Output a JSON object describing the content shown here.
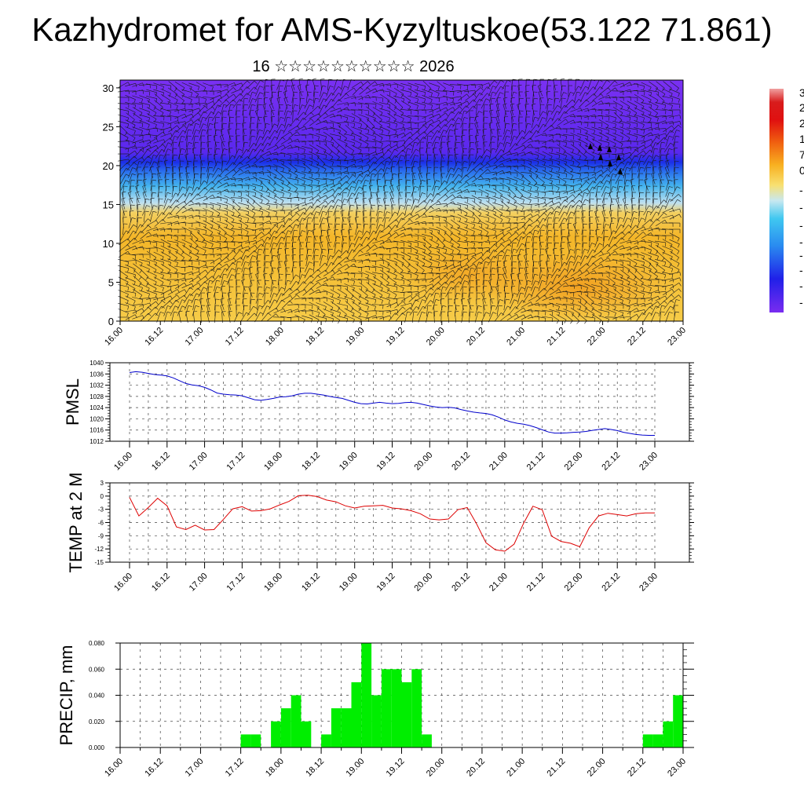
{
  "header": {
    "title": "Kazhydromet for AMS-Kyzyltuskoe(53.122 71.861)",
    "subtitle": "16 ☆☆☆☆☆☆☆☆☆☆ 2026"
  },
  "chart_data": [
    {
      "type": "heatmap",
      "name": "vertical cross-section (temperature shading + wind barbs)",
      "x_ticks": [
        "16.00",
        "16.12",
        "17.00",
        "17.12",
        "18.00",
        "18.12",
        "19.00",
        "19.12",
        "20.00",
        "20.12",
        "21.00",
        "21.12",
        "22.00",
        "22.12",
        "23.00"
      ],
      "y_ticks": [
        "0",
        "5",
        "10",
        "15",
        "20",
        "25",
        "30"
      ],
      "ylim": [
        0,
        31
      ],
      "colorbar_labels": [
        "3",
        "2",
        "2",
        "1",
        "7",
        "0",
        "-",
        "-",
        "-",
        "-",
        "-",
        "-",
        "-",
        "-"
      ],
      "colors": {
        "warm": "#f5c020",
        "orange": "#f4a020",
        "cold": "#2020e0",
        "top": "#7a2cf0"
      }
    },
    {
      "type": "line",
      "ylabel": "PMSL",
      "color": "#0000cc",
      "x_ticks": [
        "16.00",
        "16.12",
        "17.00",
        "17.12",
        "18.00",
        "18.12",
        "19.00",
        "19.12",
        "20.00",
        "20.12",
        "21.00",
        "21.12",
        "22.00",
        "22.12",
        "23.00"
      ],
      "y_ticks": [
        "1040",
        "1036",
        "1032",
        "1028",
        "1024",
        "1020",
        "1016",
        "1012"
      ],
      "ylim": [
        1012,
        1040
      ],
      "x": [
        0,
        0.083,
        0.167,
        0.25,
        0.333,
        0.417,
        0.5,
        0.583,
        0.667,
        0.75,
        0.833,
        0.917,
        1,
        1.083,
        1.167,
        1.25,
        1.333,
        1.417,
        1.5,
        1.583,
        1.667,
        1.75,
        1.833,
        1.917,
        2,
        2.083,
        2.167,
        2.25,
        2.333,
        2.417,
        2.5,
        2.583,
        2.667,
        2.75,
        2.833,
        2.917,
        3,
        3.083,
        3.167,
        3.25,
        3.333,
        3.417,
        3.5,
        3.583,
        3.667,
        3.75,
        3.833,
        3.917,
        4,
        4.083,
        4.167,
        4.25,
        4.333,
        4.417,
        4.5,
        4.583,
        4.667,
        4.75,
        4.833,
        4.917,
        5,
        5.083,
        5.167,
        5.25,
        5.333,
        5.417,
        5.5,
        5.583,
        5.667,
        5.75,
        5.833,
        5.917,
        6,
        6.083,
        6.167,
        6.25,
        6.333,
        6.417,
        6.5,
        6.583,
        6.667,
        6.75,
        6.833,
        6.917,
        7
      ],
      "values": [
        1036.5,
        1036.8,
        1036.6,
        1036.2,
        1035.8,
        1035.6,
        1035.3,
        1034.6,
        1033.6,
        1032.6,
        1032.1,
        1031.8,
        1031.2,
        1030.3,
        1029.2,
        1028.8,
        1028.6,
        1028.5,
        1028.2,
        1027.5,
        1026.8,
        1026.6,
        1026.9,
        1027.3,
        1027.8,
        1027.9,
        1028.2,
        1028.8,
        1029.1,
        1029.1,
        1028.8,
        1028.5,
        1028.0,
        1027.6,
        1027.3,
        1026.6,
        1025.9,
        1025.4,
        1025.3,
        1025.6,
        1025.9,
        1025.6,
        1025.4,
        1025.5,
        1025.8,
        1025.9,
        1025.6,
        1025.1,
        1024.6,
        1024.2,
        1024.0,
        1024.1,
        1023.9,
        1023.3,
        1022.8,
        1022.4,
        1022.1,
        1021.9,
        1021.4,
        1020.6,
        1019.6,
        1018.9,
        1018.4,
        1018.1,
        1017.6,
        1016.9,
        1016.1,
        1015.3,
        1014.9,
        1014.9,
        1015.0,
        1015.2,
        1015.3,
        1015.5,
        1015.9,
        1016.2,
        1016.5,
        1016.2,
        1015.8,
        1015.2,
        1014.8,
        1014.4,
        1014.2,
        1014.1,
        1014.1
      ]
    },
    {
      "type": "line",
      "ylabel": "TEMP at 2 M",
      "color": "#dd0000",
      "x_ticks": [
        "16.00",
        "16.12",
        "17.00",
        "17.12",
        "18.00",
        "18.12",
        "19.00",
        "19.12",
        "20.00",
        "20.12",
        "21.00",
        "21.12",
        "22.00",
        "22.12",
        "23.00"
      ],
      "y_ticks": [
        "3",
        "0",
        "-3",
        "-6",
        "-9",
        "-12",
        "-15"
      ],
      "ylim": [
        -15,
        3
      ],
      "x": [
        0,
        0.125,
        0.25,
        0.375,
        0.5,
        0.625,
        0.75,
        0.875,
        1,
        1.125,
        1.25,
        1.375,
        1.5,
        1.625,
        1.75,
        1.875,
        2,
        2.125,
        2.25,
        2.375,
        2.5,
        2.625,
        2.75,
        2.875,
        3,
        3.125,
        3.25,
        3.375,
        3.5,
        3.625,
        3.75,
        3.875,
        4,
        4.125,
        4.25,
        4.375,
        4.5,
        4.625,
        4.75,
        4.875,
        5,
        5.125,
        5.25,
        5.375,
        5.5,
        5.625,
        5.75,
        5.875,
        6,
        6.125,
        6.25,
        6.375,
        6.5,
        6.625,
        6.75,
        6.875,
        7
      ],
      "values": [
        -0.3,
        -4.5,
        -2.6,
        -0.5,
        -2.2,
        -7.0,
        -7.6,
        -6.6,
        -7.7,
        -7.6,
        -5.3,
        -2.9,
        -2.4,
        -3.4,
        -3.3,
        -2.9,
        -2.0,
        -1.2,
        0.1,
        0.2,
        -0.1,
        -0.9,
        -1.3,
        -2.2,
        -2.7,
        -2.3,
        -2.2,
        -2.1,
        -2.7,
        -2.9,
        -3.3,
        -4.0,
        -5.2,
        -5.4,
        -5.2,
        -3.1,
        -2.6,
        -6.3,
        -10.6,
        -12.2,
        -12.5,
        -10.9,
        -6.2,
        -2.3,
        -3.1,
        -9.1,
        -10.3,
        -10.7,
        -11.5,
        -7.2,
        -4.5,
        -3.9,
        -4.2,
        -4.5,
        -4.0,
        -3.8,
        -3.8
      ]
    },
    {
      "type": "bar",
      "ylabel": "PRECIP, mm",
      "color": "#00ee00",
      "x_ticks": [
        "16.00",
        "16.12",
        "17.00",
        "17.12",
        "18.00",
        "18.12",
        "19.00",
        "19.12",
        "20.00",
        "20.12",
        "21.00",
        "21.12",
        "22.00",
        "22.12",
        "23.00"
      ],
      "y_ticks": [
        "0.080",
        "0.060",
        "0.040",
        "0.020",
        "0.000"
      ],
      "ylim": [
        0,
        0.08
      ],
      "bar_width_days": 0.125,
      "x_start": [
        1.5,
        1.625,
        1.875,
        2.0,
        2.125,
        2.25,
        2.5,
        2.625,
        2.75,
        2.875,
        3.0,
        3.125,
        3.25,
        3.375,
        3.5,
        3.625,
        3.75,
        6.5,
        6.625,
        6.75,
        6.875
      ],
      "values": [
        0.01,
        0.01,
        0.02,
        0.03,
        0.04,
        0.02,
        0.01,
        0.03,
        0.03,
        0.05,
        0.08,
        0.04,
        0.06,
        0.06,
        0.05,
        0.06,
        0.01,
        0.01,
        0.01,
        0.02,
        0.04
      ]
    }
  ]
}
